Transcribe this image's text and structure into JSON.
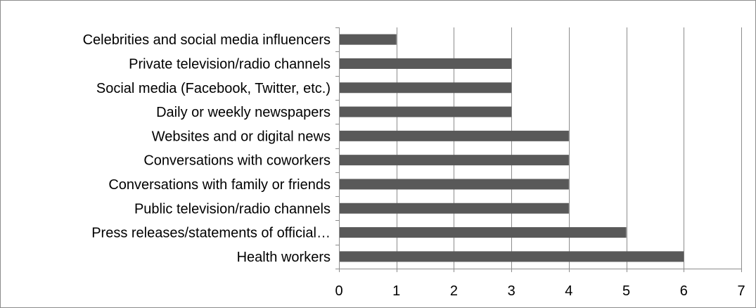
{
  "chart_data": {
    "type": "bar",
    "orientation": "horizontal",
    "title": "",
    "xlabel": "",
    "ylabel": "",
    "categories": [
      "Celebrities and social media influencers",
      "Private television/radio channels",
      "Social media (Facebook, Twitter, etc.)",
      "Daily or weekly newspapers",
      "Websites and or digital news",
      "Conversations with coworkers",
      "Conversations with family or friends",
      "Public television/radio channels",
      "Press releases/statements of official…",
      "Health workers"
    ],
    "values": [
      1,
      3,
      3,
      3,
      4,
      4,
      4,
      4,
      5,
      6
    ],
    "xlim": [
      0,
      7
    ],
    "xticks": [
      "0",
      "1",
      "2",
      "3",
      "4",
      "5",
      "6",
      "7"
    ],
    "grid": "vertical",
    "legend": "none",
    "colors": {
      "bar": "#595959",
      "gridline": "#8c8c8c",
      "axis": "#8c8c8c",
      "border": "#8c8c8c"
    }
  }
}
